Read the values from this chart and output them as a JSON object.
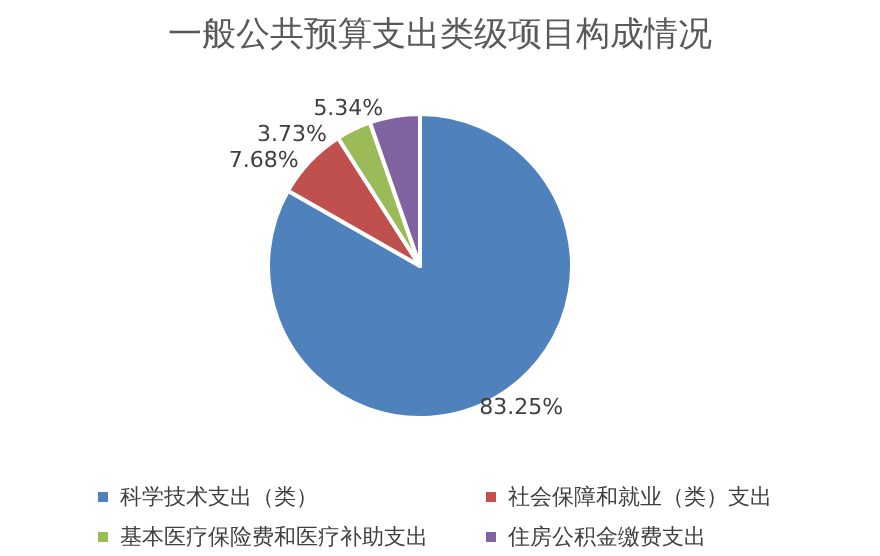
{
  "chart_data": {
    "type": "pie",
    "title": "一般公共预算支出类级项目构成情况",
    "categories": [
      "科学技术支出（类）",
      "社会保障和就业（类）支出",
      "基本医疗保险费和医疗补助支出",
      "住房公积金缴费支出"
    ],
    "values": [
      83.25,
      7.68,
      3.73,
      5.34
    ],
    "colors": [
      "#4f81bd",
      "#c0504d",
      "#9bbb59",
      "#8064a2"
    ],
    "value_labels": [
      "83.25%",
      "7.68%",
      "3.73%",
      "5.34%"
    ],
    "legend": "bottom"
  }
}
